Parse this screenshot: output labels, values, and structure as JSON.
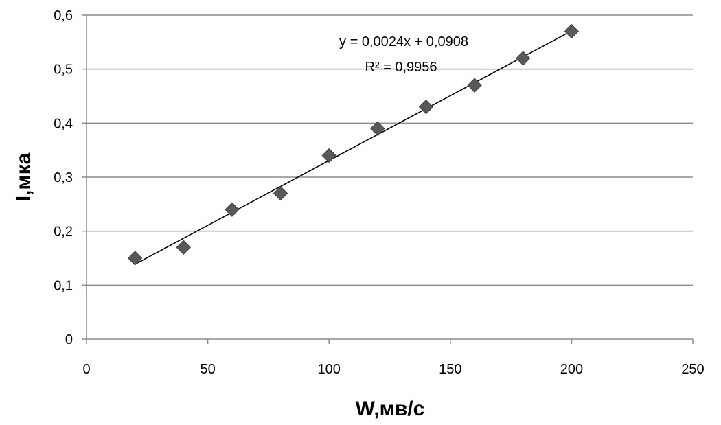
{
  "chart_data": {
    "type": "scatter",
    "xlabel": "W,мв/с",
    "ylabel": "I,мка",
    "xlim": [
      0,
      250
    ],
    "ylim": [
      0,
      0.6
    ],
    "x_ticks": [
      0,
      50,
      100,
      150,
      200,
      250
    ],
    "x_tick_labels": [
      "0",
      "50",
      "100",
      "150",
      "200",
      "250"
    ],
    "y_ticks": [
      0,
      0.1,
      0.2,
      0.3,
      0.4,
      0.5,
      0.6
    ],
    "y_tick_labels": [
      "0",
      "0,1",
      "0,2",
      "0,3",
      "0,4",
      "0,5",
      "0,6"
    ],
    "grid": "horizontal",
    "legend": "none",
    "series": [
      {
        "x": [
          20,
          40,
          60,
          80,
          100,
          120,
          140,
          160,
          180,
          200
        ],
        "y": [
          0.15,
          0.17,
          0.24,
          0.27,
          0.34,
          0.39,
          0.43,
          0.47,
          0.52,
          0.57
        ],
        "marker": "diamond",
        "color": "#595959"
      }
    ],
    "trendline": {
      "slope": 0.0024,
      "intercept": 0.0908,
      "x_range": [
        20,
        200
      ],
      "equation_label": "y = 0,0024x + 0,0908",
      "r2_label": "R² = 0,9956",
      "color": "#000000"
    },
    "colors": {
      "grid": "#8c8c8c",
      "axis": "#8c8c8c",
      "marker": "#595959",
      "marker_stroke": "#3f3f3f"
    }
  }
}
